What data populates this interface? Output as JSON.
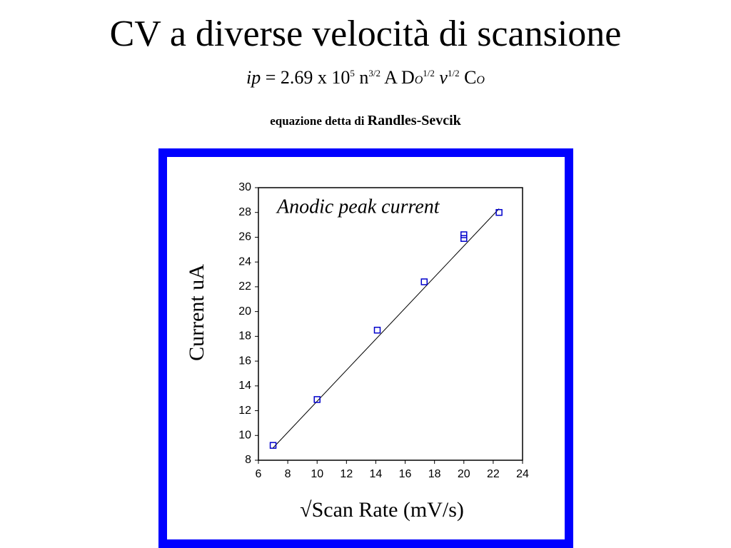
{
  "slide": {
    "title": "CV a diverse velocità di scansione",
    "equation": [
      "ip",
      " = ",
      "2.69 x 10",
      "5",
      " n",
      "3/2",
      " A D",
      "O",
      "1/2",
      " v",
      "1/2",
      " C",
      "O"
    ],
    "subtitle": [
      "equazione detta di",
      "Randles-Sevcik"
    ]
  },
  "chart_data": {
    "type": "scatter",
    "annotation": "Anodic peak current",
    "x_label": "√Scan Rate (mV/s)",
    "y_label": "Current uA",
    "x": [
      7,
      10,
      14.1,
      17.3,
      20,
      20,
      22.4
    ],
    "values": [
      9.2,
      12.9,
      18.5,
      22.4,
      26.2,
      25.9,
      28.0
    ],
    "color": "#0000cc",
    "fit_line": {
      "x": [
        7,
        22.4
      ],
      "values": [
        9.0,
        28.3
      ],
      "color": "#000000"
    },
    "xlim": [
      6,
      24
    ],
    "xticks": [
      6,
      8,
      10,
      12,
      14,
      16,
      18,
      20,
      22,
      24
    ],
    "ylim": [
      8,
      30
    ],
    "yticks": [
      8,
      10,
      12,
      14,
      16,
      18,
      20,
      22,
      24,
      26,
      28,
      30
    ]
  }
}
